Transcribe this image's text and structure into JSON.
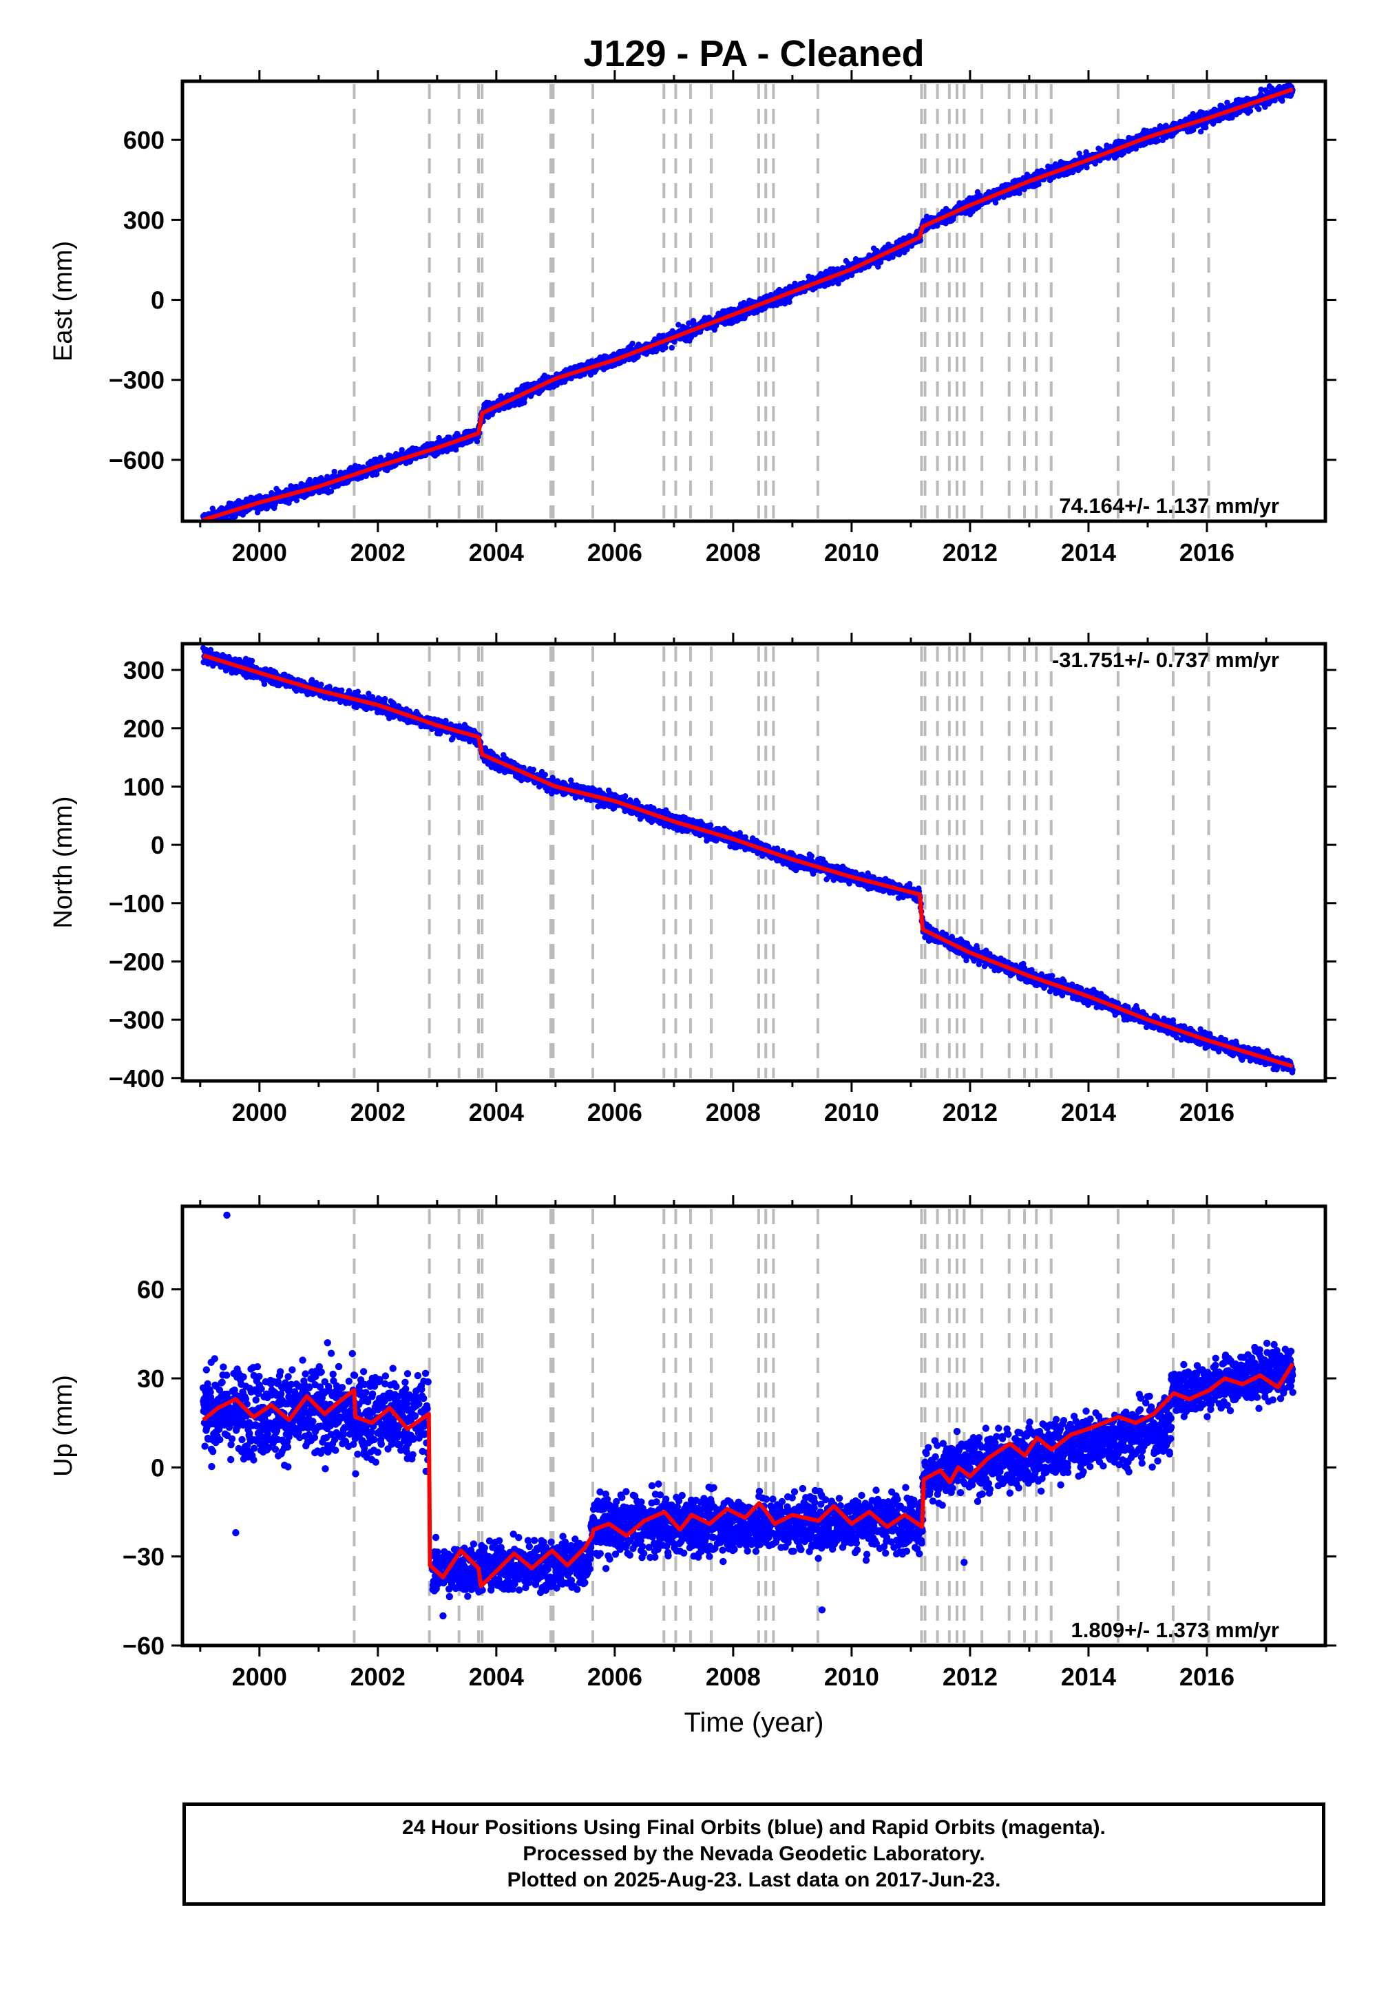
{
  "title": "J129  - PA - Cleaned",
  "colors": {
    "final_orbits": "#0000ff",
    "model": "#ff0000",
    "event_lines": "#bbbbbb",
    "frame": "#000000"
  },
  "x_axis": {
    "label": "Time (year)",
    "range": [
      1998.7,
      2018.0
    ],
    "ticks": [
      2000,
      2002,
      2004,
      2006,
      2008,
      2010,
      2012,
      2014,
      2016
    ],
    "tick_labels": [
      "2000",
      "2002",
      "2004",
      "2006",
      "2008",
      "2010",
      "2012",
      "2014",
      "2016"
    ]
  },
  "event_lines_years": [
    2001.6,
    2002.87,
    2003.37,
    2003.7,
    2003.76,
    2004.92,
    2004.96,
    2005.63,
    2006.83,
    2007.03,
    2007.28,
    2007.63,
    2008.43,
    2008.55,
    2008.68,
    2009.43,
    2011.18,
    2011.24,
    2011.45,
    2011.65,
    2011.78,
    2011.9,
    2012.2,
    2012.66,
    2012.92,
    2013.12,
    2013.37,
    2014.5,
    2015.43,
    2016.03
  ],
  "chart_data": [
    {
      "type": "scatter",
      "component": "East",
      "ylabel": "East (mm)",
      "ylim": [
        -830,
        820
      ],
      "yticks": [
        -600,
        -300,
        0,
        300,
        600
      ],
      "ytick_labels": [
        "−600",
        "−300",
        "0",
        "300",
        "600"
      ],
      "rate_text": "74.164+/- 1.137 mm/yr",
      "rate_position": "bottom-right",
      "series": [
        {
          "kind": "points",
          "x": [
            1999.05,
            2000.0,
            2001.0,
            2002.0,
            2003.0,
            2003.7,
            2003.76,
            2005.0,
            2006.0,
            2007.0,
            2008.0,
            2009.0,
            2010.0,
            2011.15,
            2011.2,
            2012.0,
            2013.0,
            2014.0,
            2015.0,
            2016.0,
            2017.45
          ],
          "y": [
            -825,
            -760,
            -700,
            -625,
            -555,
            -500,
            -425,
            -295,
            -225,
            -140,
            -55,
            30,
            115,
            235,
            275,
            355,
            445,
            525,
            610,
            680,
            790
          ]
        },
        {
          "kind": "model",
          "x": [
            1999.05,
            2000.0,
            2001.0,
            2002.0,
            2003.0,
            2003.7,
            2003.76,
            2005.0,
            2006.0,
            2007.0,
            2008.0,
            2009.0,
            2010.0,
            2011.15,
            2011.2,
            2012.0,
            2013.0,
            2014.0,
            2015.0,
            2016.0,
            2017.45
          ],
          "y": [
            -825,
            -760,
            -700,
            -625,
            -555,
            -500,
            -425,
            -295,
            -225,
            -140,
            -55,
            30,
            115,
            235,
            275,
            355,
            445,
            525,
            610,
            680,
            790
          ]
        }
      ]
    },
    {
      "type": "scatter",
      "component": "North",
      "ylabel": "North (mm)",
      "ylim": [
        -405,
        345
      ],
      "yticks": [
        -400,
        -300,
        -200,
        -100,
        0,
        100,
        200,
        300
      ],
      "ytick_labels": [
        "−400",
        "−300",
        "−200",
        "−100",
        "0",
        "100",
        "200",
        "300"
      ],
      "rate_text": "-31.751+/- 0.737 mm/yr",
      "rate_position": "top-right",
      "series": [
        {
          "kind": "points",
          "x": [
            1999.05,
            2000.0,
            2001.0,
            2002.0,
            2003.0,
            2003.7,
            2003.76,
            2005.0,
            2006.0,
            2007.0,
            2008.0,
            2009.0,
            2010.0,
            2011.15,
            2011.2,
            2012.0,
            2013.0,
            2014.0,
            2015.0,
            2016.0,
            2017.45
          ],
          "y": [
            325,
            295,
            265,
            240,
            205,
            185,
            155,
            100,
            75,
            40,
            10,
            -25,
            -55,
            -85,
            -145,
            -185,
            -225,
            -260,
            -300,
            -335,
            -380
          ]
        },
        {
          "kind": "model",
          "x": [
            1999.05,
            2000.0,
            2001.0,
            2002.0,
            2003.0,
            2003.7,
            2003.76,
            2005.0,
            2006.0,
            2007.0,
            2008.0,
            2009.0,
            2010.0,
            2011.15,
            2011.2,
            2012.0,
            2013.0,
            2014.0,
            2015.0,
            2016.0,
            2017.45
          ],
          "y": [
            325,
            295,
            265,
            240,
            205,
            185,
            155,
            100,
            75,
            40,
            10,
            -25,
            -55,
            -85,
            -145,
            -185,
            -225,
            -260,
            -300,
            -335,
            -380
          ]
        }
      ]
    },
    {
      "type": "scatter",
      "component": "Up",
      "ylabel": "Up (mm)",
      "ylim": [
        -60,
        88
      ],
      "yticks": [
        -60,
        -30,
        0,
        30,
        60
      ],
      "ytick_labels": [
        "−60",
        "−30",
        "0",
        "30",
        "60"
      ],
      "rate_text": "1.809+/- 1.373 mm/yr",
      "rate_position": "bottom-right",
      "series": [
        {
          "kind": "points_scatter_band",
          "segments": [
            {
              "x": [
                1999.05,
                2002.85
              ],
              "y": [
                19,
                17
              ],
              "spread": 14
            },
            {
              "x": [
                2002.92,
                2005.6
              ],
              "y": [
                -35,
                -32
              ],
              "spread": 8
            },
            {
              "x": [
                2005.6,
                2011.2
              ],
              "y": [
                -20,
                -18
              ],
              "spread": 9
            },
            {
              "x": [
                2011.2,
                2015.4
              ],
              "y": [
                -3,
                14
              ],
              "spread": 9
            },
            {
              "x": [
                2015.4,
                2017.45
              ],
              "y": [
                25,
                33
              ],
              "spread": 8
            }
          ],
          "outliers": [
            [
              1999.45,
              85
            ],
            [
              1999.6,
              -22
            ],
            [
              2001.15,
              42
            ],
            [
              2009.5,
              -48
            ],
            [
              2011.9,
              -32
            ],
            [
              2013.2,
              -8
            ],
            [
              2003.1,
              -50
            ]
          ]
        },
        {
          "kind": "model",
          "x": [
            1999.05,
            1999.3,
            1999.6,
            1999.9,
            2000.2,
            2000.5,
            2000.8,
            2001.1,
            2001.4,
            2001.6,
            2001.62,
            2001.9,
            2002.2,
            2002.5,
            2002.86,
            2002.88,
            2003.1,
            2003.4,
            2003.7,
            2003.74,
            2004.0,
            2004.3,
            2004.6,
            2004.94,
            2005.2,
            2005.5,
            2005.62,
            2005.64,
            2005.9,
            2006.2,
            2006.5,
            2006.84,
            2007.1,
            2007.3,
            2007.6,
            2007.9,
            2008.2,
            2008.44,
            2008.56,
            2008.7,
            2009.0,
            2009.44,
            2009.7,
            2010.0,
            2010.3,
            2010.6,
            2010.9,
            2011.19,
            2011.22,
            2011.5,
            2011.66,
            2011.8,
            2012.0,
            2012.3,
            2012.67,
            2012.93,
            2013.13,
            2013.38,
            2013.7,
            2014.0,
            2014.51,
            2014.8,
            2015.1,
            2015.44,
            2015.7,
            2016.04,
            2016.3,
            2016.6,
            2016.9,
            2017.2,
            2017.45
          ],
          "y": [
            16,
            20,
            23,
            17,
            21,
            16,
            24,
            18,
            23,
            26,
            17,
            15,
            20,
            13,
            18,
            -33,
            -37,
            -28,
            -34,
            -40,
            -35,
            -29,
            -34,
            -28,
            -33,
            -27,
            -23,
            -21,
            -19,
            -23,
            -18,
            -15,
            -21,
            -16,
            -19,
            -14,
            -17,
            -12,
            -15,
            -19,
            -16,
            -18,
            -13,
            -19,
            -15,
            -20,
            -16,
            -20,
            -4,
            -1,
            -5,
            0,
            -3,
            3,
            8,
            4,
            10,
            6,
            11,
            13,
            17,
            15,
            18,
            25,
            23,
            26,
            30,
            28,
            31,
            27,
            35
          ]
        }
      ]
    }
  ],
  "footer": {
    "line1": "24 Hour Positions Using Final Orbits (blue) and Rapid Orbits (magenta).",
    "line2": "Processed by the Nevada Geodetic Laboratory.",
    "line3": "Plotted on 2025-Aug-23. Last data on 2017-Jun-23."
  }
}
